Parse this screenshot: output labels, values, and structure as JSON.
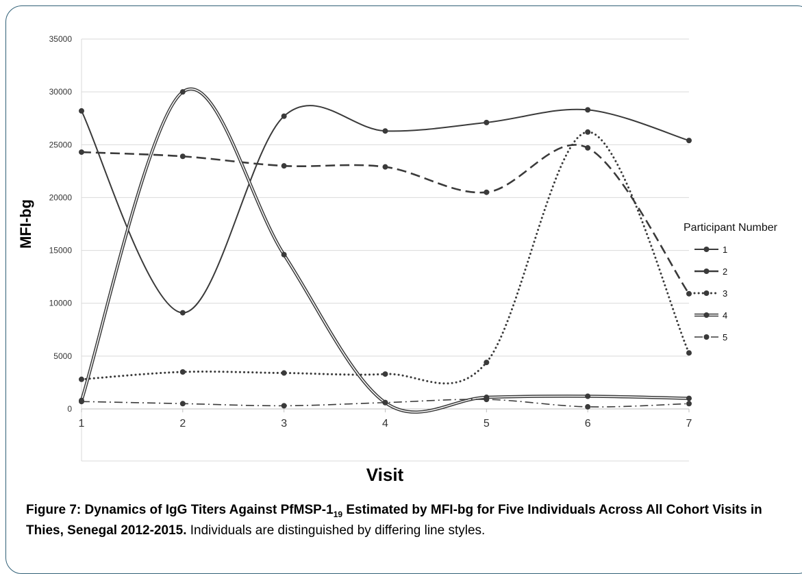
{
  "chart_data": {
    "type": "line",
    "xlabel": "Visit",
    "ylabel": "MFI-bg",
    "x": [
      1,
      2,
      3,
      4,
      5,
      6,
      7
    ],
    "xlim": [
      1,
      7
    ],
    "ylim": [
      0,
      35000
    ],
    "yticks": [
      0,
      5000,
      10000,
      15000,
      20000,
      25000,
      30000,
      35000
    ],
    "grid": "horizontal",
    "smooth": true,
    "legend": {
      "title": "Participant Number",
      "position": "right"
    },
    "series": [
      {
        "name": "1",
        "style": "solid",
        "values": [
          28200,
          9100,
          27700,
          26300,
          27100,
          28300,
          25400
        ]
      },
      {
        "name": "2",
        "style": "dashed",
        "values": [
          24300,
          23900,
          23000,
          22900,
          20500,
          24700,
          10900
        ]
      },
      {
        "name": "3",
        "style": "dotted",
        "values": [
          2800,
          3500,
          3400,
          3300,
          4400,
          26200,
          5300
        ]
      },
      {
        "name": "4",
        "style": "double",
        "values": [
          800,
          30000,
          14600,
          600,
          1100,
          1200,
          1000
        ]
      },
      {
        "name": "5",
        "style": "dash-dot",
        "values": [
          700,
          500,
          300,
          600,
          900,
          200,
          500
        ]
      }
    ],
    "line_color": "#3a3a3a",
    "grid_color": "#d9d9d9"
  },
  "caption": {
    "bold_prefix": "Figure 7: Dynamics of IgG Titers Against PfMSP-1",
    "subscript": "19",
    "bold_suffix": " Estimated by MFI-bg for Five Individuals Across All Cohort Visits in Thies, Senegal 2012-2015.",
    "text": " Individuals are distinguished by differing line styles."
  }
}
